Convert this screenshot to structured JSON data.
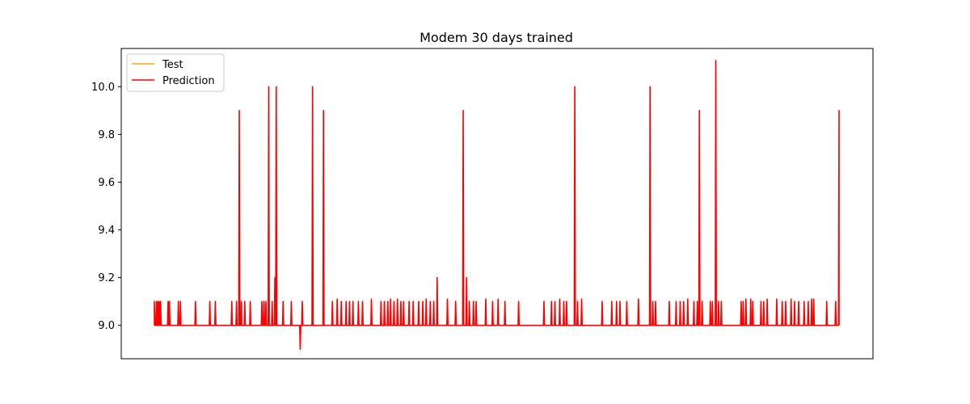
{
  "chart_data": {
    "type": "line",
    "title": "Modem 30 days trained",
    "xlabel": "",
    "ylabel": "",
    "x_ticks_visible": false,
    "ylim": [
      8.86,
      10.16
    ],
    "y_ticks": [
      "9.0",
      "9.2",
      "9.4",
      "9.6",
      "9.8",
      "10.0"
    ],
    "grid": false,
    "legend_position": "top-left",
    "series": [
      {
        "name": "Test",
        "color": "#FFA500",
        "values": []
      },
      {
        "name": "Prediction",
        "color": "#FF0000",
        "baseline": 9.0,
        "x_range": [
          0,
          1000
        ],
        "spikes": [
          [
            0,
            9.1
          ],
          [
            3,
            9.1
          ],
          [
            5,
            9.1
          ],
          [
            7,
            9.1
          ],
          [
            9,
            9.1
          ],
          [
            20,
            9.1
          ],
          [
            22,
            9.1
          ],
          [
            35,
            9.1
          ],
          [
            38,
            9.1
          ],
          [
            60,
            9.1
          ],
          [
            81,
            9.1
          ],
          [
            89,
            9.1
          ],
          [
            113,
            9.1
          ],
          [
            120,
            9.1
          ],
          [
            124,
            9.9
          ],
          [
            127,
            9.1
          ],
          [
            132,
            9.1
          ],
          [
            140,
            9.1
          ],
          [
            157,
            9.1
          ],
          [
            160,
            9.1
          ],
          [
            163,
            9.1
          ],
          [
            167,
            10.0
          ],
          [
            172,
            9.1
          ],
          [
            176,
            9.2
          ],
          [
            178,
            10.0
          ],
          [
            188,
            9.1
          ],
          [
            200,
            9.1
          ],
          [
            213,
            8.9
          ],
          [
            216,
            9.1
          ],
          [
            231,
            10.0
          ],
          [
            247,
            9.9
          ],
          [
            260,
            9.1
          ],
          [
            267,
            9.11
          ],
          [
            273,
            9.1
          ],
          [
            280,
            9.1
          ],
          [
            285,
            9.1
          ],
          [
            290,
            9.1
          ],
          [
            298,
            9.1
          ],
          [
            304,
            9.1
          ],
          [
            317,
            9.11
          ],
          [
            331,
            9.1
          ],
          [
            336,
            9.1
          ],
          [
            341,
            9.1
          ],
          [
            345,
            9.11
          ],
          [
            350,
            9.1
          ],
          [
            355,
            9.11
          ],
          [
            360,
            9.1
          ],
          [
            364,
            9.1
          ],
          [
            372,
            9.1
          ],
          [
            378,
            9.1
          ],
          [
            386,
            9.1
          ],
          [
            392,
            9.1
          ],
          [
            397,
            9.11
          ],
          [
            403,
            9.1
          ],
          [
            408,
            9.1
          ],
          [
            413,
            9.2
          ],
          [
            428,
            9.11
          ],
          [
            440,
            9.1
          ],
          [
            451,
            9.9
          ],
          [
            456,
            9.2
          ],
          [
            460,
            9.1
          ],
          [
            466,
            9.1
          ],
          [
            470,
            9.1
          ],
          [
            484,
            9.11
          ],
          [
            494,
            9.1
          ],
          [
            502,
            9.11
          ],
          [
            512,
            9.1
          ],
          [
            532,
            9.1
          ],
          [
            569,
            9.1
          ],
          [
            580,
            9.1
          ],
          [
            585,
            9.1
          ],
          [
            592,
            9.11
          ],
          [
            598,
            9.1
          ],
          [
            602,
            9.1
          ],
          [
            614,
            10.0
          ],
          [
            618,
            9.1
          ],
          [
            624,
            9.11
          ],
          [
            654,
            9.1
          ],
          [
            668,
            9.1
          ],
          [
            675,
            9.1
          ],
          [
            680,
            9.1
          ],
          [
            690,
            9.1
          ],
          [
            707,
            9.11
          ],
          [
            724,
            10.0
          ],
          [
            728,
            9.1
          ],
          [
            732,
            9.1
          ],
          [
            752,
            9.1
          ],
          [
            762,
            9.1
          ],
          [
            768,
            9.1
          ],
          [
            773,
            9.1
          ],
          [
            779,
            9.11
          ],
          [
            788,
            9.1
          ],
          [
            793,
            9.1
          ],
          [
            796,
            9.9
          ],
          [
            800,
            9.1
          ],
          [
            812,
            9.1
          ],
          [
            815,
            9.1
          ],
          [
            820,
            10.11
          ],
          [
            824,
            9.1
          ],
          [
            828,
            9.1
          ],
          [
            857,
            9.1
          ],
          [
            860,
            9.1
          ],
          [
            864,
            9.11
          ],
          [
            871,
            9.11
          ],
          [
            874,
            9.1
          ],
          [
            886,
            9.1
          ],
          [
            890,
            9.1
          ],
          [
            895,
            9.11
          ],
          [
            909,
            9.11
          ],
          [
            917,
            9.1
          ],
          [
            922,
            9.1
          ],
          [
            930,
            9.11
          ],
          [
            935,
            9.1
          ],
          [
            941,
            9.1
          ],
          [
            949,
            9.1
          ],
          [
            955,
            9.1
          ],
          [
            960,
            9.11
          ],
          [
            963,
            9.11
          ],
          [
            982,
            9.1
          ],
          [
            995,
            9.1
          ],
          [
            1000,
            9.9
          ]
        ]
      }
    ]
  }
}
